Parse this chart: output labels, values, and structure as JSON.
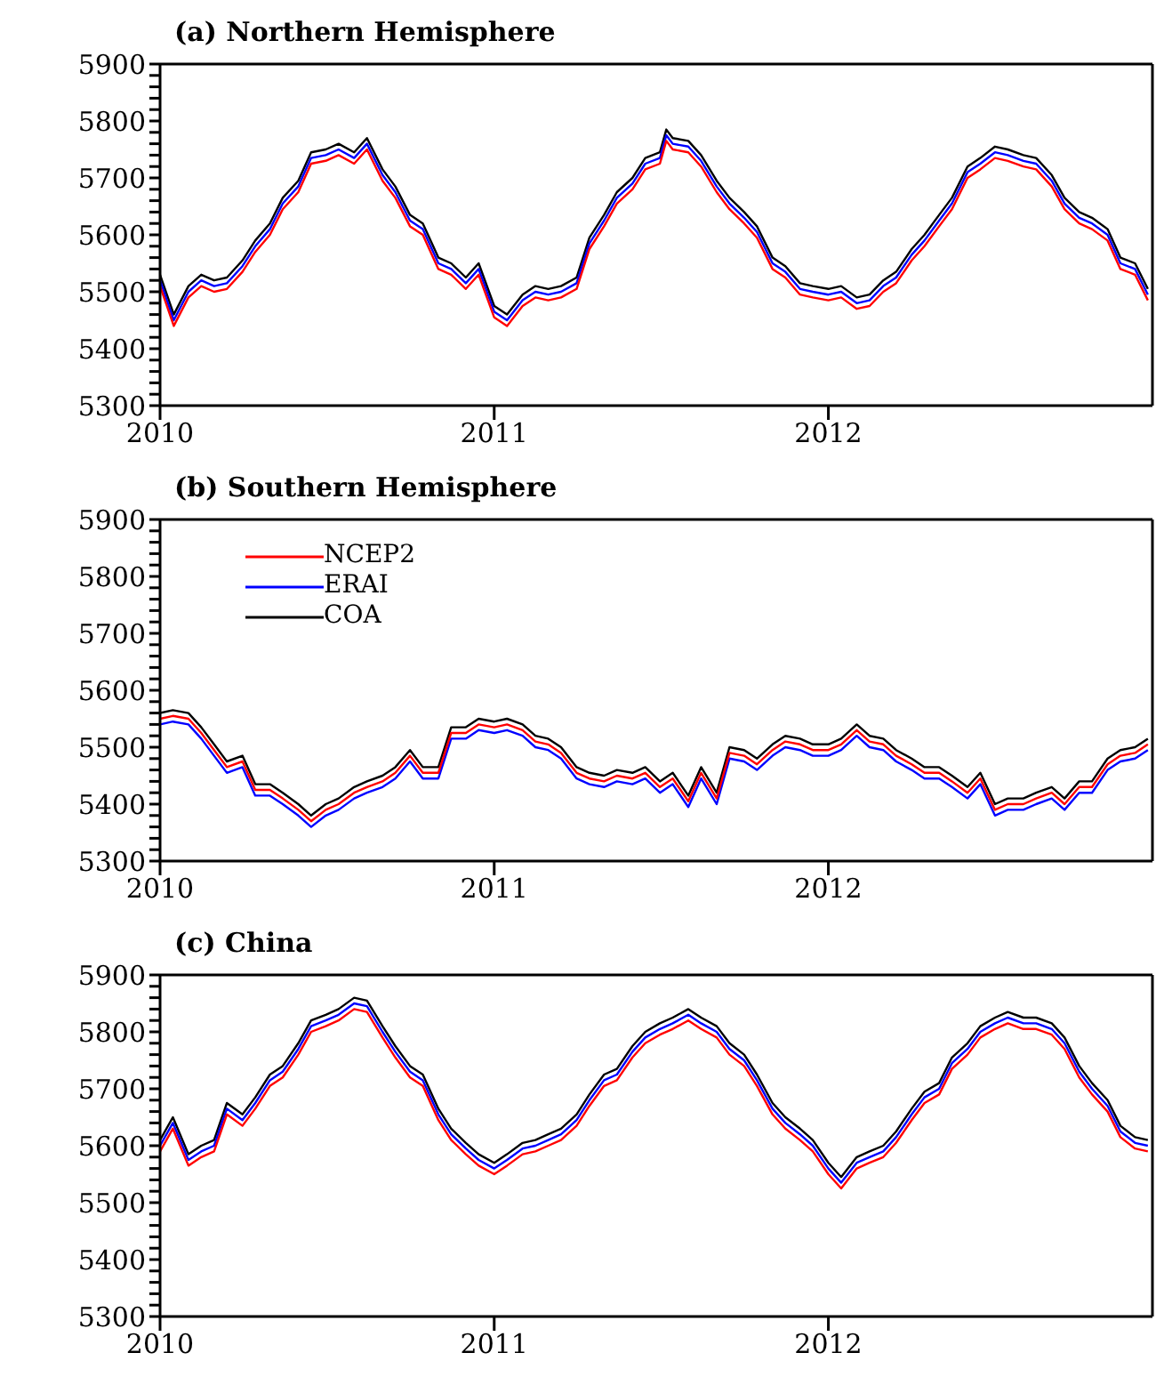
{
  "chart_data": [
    {
      "type": "line",
      "title": "(a) Northern Hemisphere",
      "x": [
        "2010-01-01",
        "2010-01-16",
        "2010-02-01",
        "2010-02-15",
        "2010-03-01",
        "2010-03-15",
        "2010-04-01",
        "2010-04-15",
        "2010-05-01",
        "2010-05-15",
        "2010-06-01",
        "2010-06-15",
        "2010-07-01",
        "2010-07-15",
        "2010-08-01",
        "2010-08-15",
        "2010-09-01",
        "2010-09-15",
        "2010-10-01",
        "2010-10-15",
        "2010-11-01",
        "2010-11-15",
        "2010-12-01",
        "2010-12-15",
        "2011-01-01",
        "2011-01-15",
        "2011-02-01",
        "2011-02-15",
        "2011-03-01",
        "2011-03-15",
        "2011-04-01",
        "2011-04-15",
        "2011-05-01",
        "2011-05-15",
        "2011-06-01",
        "2011-06-15",
        "2011-07-01",
        "2011-07-08",
        "2011-07-15",
        "2011-08-01",
        "2011-08-15",
        "2011-09-01",
        "2011-09-15",
        "2011-10-01",
        "2011-10-15",
        "2011-11-01",
        "2011-11-15",
        "2011-12-01",
        "2011-12-15",
        "2012-01-01",
        "2012-01-15",
        "2012-02-01",
        "2012-02-15",
        "2012-03-01",
        "2012-03-15",
        "2012-04-01",
        "2012-04-15",
        "2012-05-01",
        "2012-05-15",
        "2012-06-01",
        "2012-06-15",
        "2012-07-01",
        "2012-07-15",
        "2012-08-01",
        "2012-08-15",
        "2012-09-01",
        "2012-09-15",
        "2012-10-01",
        "2012-10-15",
        "2012-11-01",
        "2012-11-15",
        "2012-12-01",
        "2012-12-15"
      ],
      "series": [
        {
          "color": "#ff0000",
          "values": [
            5510,
            5440,
            5490,
            5510,
            5500,
            5505,
            5535,
            5570,
            5600,
            5645,
            5675,
            5725,
            5730,
            5740,
            5725,
            5750,
            5695,
            5665,
            5615,
            5600,
            5540,
            5530,
            5505,
            5530,
            5455,
            5440,
            5475,
            5490,
            5485,
            5490,
            5505,
            5575,
            5615,
            5655,
            5680,
            5715,
            5725,
            5765,
            5750,
            5745,
            5720,
            5675,
            5645,
            5620,
            5595,
            5540,
            5525,
            5495,
            5490,
            5485,
            5490,
            5470,
            5475,
            5500,
            5515,
            5555,
            5580,
            5615,
            5645,
            5700,
            5715,
            5735,
            5730,
            5720,
            5715,
            5685,
            5645,
            5620,
            5610,
            5590,
            5540,
            5530,
            5485
          ]
        },
        {
          "color": "#0000ff",
          "values": [
            5520,
            5450,
            5500,
            5520,
            5510,
            5515,
            5545,
            5580,
            5610,
            5655,
            5685,
            5735,
            5740,
            5750,
            5735,
            5760,
            5705,
            5675,
            5625,
            5610,
            5550,
            5540,
            5515,
            5540,
            5465,
            5450,
            5485,
            5500,
            5495,
            5500,
            5515,
            5585,
            5625,
            5665,
            5690,
            5725,
            5735,
            5775,
            5760,
            5755,
            5730,
            5685,
            5655,
            5630,
            5605,
            5550,
            5535,
            5505,
            5500,
            5495,
            5500,
            5480,
            5485,
            5510,
            5525,
            5565,
            5590,
            5625,
            5655,
            5710,
            5725,
            5745,
            5740,
            5730,
            5725,
            5695,
            5655,
            5630,
            5620,
            5600,
            5550,
            5540,
            5495
          ]
        },
        {
          "color": "#000000",
          "values": [
            5530,
            5460,
            5510,
            5530,
            5520,
            5525,
            5555,
            5590,
            5620,
            5665,
            5695,
            5745,
            5750,
            5760,
            5745,
            5770,
            5715,
            5685,
            5635,
            5620,
            5560,
            5550,
            5525,
            5550,
            5475,
            5460,
            5495,
            5510,
            5505,
            5510,
            5525,
            5595,
            5635,
            5675,
            5700,
            5735,
            5745,
            5785,
            5770,
            5765,
            5740,
            5695,
            5665,
            5640,
            5615,
            5560,
            5545,
            5515,
            5510,
            5505,
            5510,
            5490,
            5495,
            5520,
            5535,
            5575,
            5600,
            5635,
            5665,
            5720,
            5735,
            5755,
            5750,
            5740,
            5735,
            5705,
            5665,
            5640,
            5630,
            5610,
            5560,
            5550,
            5505
          ]
        }
      ],
      "xlim": [
        "2010-01-01",
        "2012-12-20"
      ],
      "xticks": [
        "2010",
        "2011",
        "2012"
      ],
      "ylim": [
        5300,
        5900
      ],
      "yticks": [
        5300,
        {
          "value": 5320,
          "label": null
        },
        {
          "value": 5340,
          "label": null
        },
        {
          "value": 5360,
          "label": null
        },
        {
          "value": 5380,
          "label": null
        },
        5400,
        {
          "value": 5420,
          "label": null
        },
        {
          "value": 5440,
          "label": null
        },
        {
          "value": 5460,
          "label": null
        },
        {
          "value": 5480,
          "label": null
        },
        5500,
        {
          "value": 5520,
          "label": null
        },
        {
          "value": 5540,
          "label": null
        },
        {
          "value": 5560,
          "label": null
        },
        {
          "value": 5580,
          "label": null
        },
        5600,
        {
          "value": 5620,
          "label": null
        },
        {
          "value": 5640,
          "label": null
        },
        {
          "value": 5660,
          "label": null
        },
        {
          "value": 5680,
          "label": null
        },
        5700,
        {
          "value": 5720,
          "label": null
        },
        {
          "value": 5740,
          "label": null
        },
        {
          "value": 5760,
          "label": null
        },
        {
          "value": 5780,
          "label": null
        },
        5800,
        {
          "value": 5820,
          "label": null
        },
        {
          "value": 5840,
          "label": null
        },
        {
          "value": 5860,
          "label": null
        },
        {
          "value": 5880,
          "label": null
        },
        5900
      ],
      "grid": false,
      "marker": "none",
      "line_style": "solid"
    },
    {
      "type": "line",
      "title": "(b) Southern Hemisphere",
      "x": [
        "2010-01-01",
        "2010-01-15",
        "2010-02-01",
        "2010-02-15",
        "2010-03-01",
        "2010-03-15",
        "2010-04-01",
        "2010-04-15",
        "2010-05-01",
        "2010-05-15",
        "2010-06-01",
        "2010-06-15",
        "2010-07-01",
        "2010-07-15",
        "2010-08-01",
        "2010-08-15",
        "2010-09-01",
        "2010-09-15",
        "2010-10-01",
        "2010-10-15",
        "2010-11-01",
        "2010-11-15",
        "2010-12-01",
        "2010-12-15",
        "2011-01-01",
        "2011-01-15",
        "2011-02-01",
        "2011-02-15",
        "2011-03-01",
        "2011-03-15",
        "2011-04-01",
        "2011-04-15",
        "2011-05-01",
        "2011-05-15",
        "2011-06-01",
        "2011-06-15",
        "2011-07-01",
        "2011-07-15",
        "2011-08-01",
        "2011-08-15",
        "2011-09-01",
        "2011-09-15",
        "2011-10-01",
        "2011-10-15",
        "2011-11-01",
        "2011-11-15",
        "2011-12-01",
        "2011-12-15",
        "2012-01-01",
        "2012-01-15",
        "2012-02-01",
        "2012-02-15",
        "2012-03-01",
        "2012-03-15",
        "2012-04-01",
        "2012-04-15",
        "2012-05-01",
        "2012-05-15",
        "2012-06-01",
        "2012-06-15",
        "2012-07-01",
        "2012-07-15",
        "2012-08-01",
        "2012-08-15",
        "2012-09-01",
        "2012-09-15",
        "2012-10-01",
        "2012-10-15",
        "2012-11-01",
        "2012-11-15",
        "2012-12-01",
        "2012-12-15"
      ],
      "series": [
        {
          "name": "NCEP2",
          "color": "#ff0000",
          "values": [
            5550,
            5555,
            5550,
            5525,
            5495,
            5465,
            5475,
            5425,
            5425,
            5410,
            5390,
            5370,
            5390,
            5400,
            5420,
            5430,
            5440,
            5455,
            5485,
            5455,
            5455,
            5525,
            5525,
            5540,
            5535,
            5540,
            5530,
            5510,
            5505,
            5490,
            5455,
            5445,
            5440,
            5450,
            5445,
            5455,
            5430,
            5445,
            5405,
            5455,
            5410,
            5490,
            5485,
            5470,
            5495,
            5510,
            5505,
            5495,
            5495,
            5505,
            5530,
            5510,
            5505,
            5485,
            5470,
            5455,
            5455,
            5440,
            5420,
            5445,
            5390,
            5400,
            5400,
            5410,
            5420,
            5400,
            5430,
            5430,
            5470,
            5485,
            5490,
            5505
          ]
        },
        {
          "name": "ERAI",
          "color": "#0000ff",
          "values": [
            5540,
            5545,
            5540,
            5515,
            5485,
            5455,
            5465,
            5415,
            5415,
            5400,
            5380,
            5360,
            5380,
            5390,
            5410,
            5420,
            5430,
            5445,
            5475,
            5445,
            5445,
            5515,
            5515,
            5530,
            5525,
            5530,
            5520,
            5500,
            5495,
            5480,
            5445,
            5435,
            5430,
            5440,
            5435,
            5445,
            5420,
            5435,
            5395,
            5445,
            5400,
            5480,
            5475,
            5460,
            5485,
            5500,
            5495,
            5485,
            5485,
            5495,
            5520,
            5500,
            5495,
            5475,
            5460,
            5445,
            5445,
            5430,
            5410,
            5435,
            5380,
            5390,
            5390,
            5400,
            5410,
            5390,
            5420,
            5420,
            5460,
            5475,
            5480,
            5495
          ]
        },
        {
          "name": "COA",
          "color": "#000000",
          "values": [
            5560,
            5565,
            5560,
            5535,
            5505,
            5475,
            5485,
            5435,
            5435,
            5420,
            5400,
            5380,
            5400,
            5410,
            5430,
            5440,
            5450,
            5465,
            5495,
            5465,
            5465,
            5535,
            5535,
            5550,
            5545,
            5550,
            5540,
            5520,
            5515,
            5500,
            5465,
            5455,
            5450,
            5460,
            5455,
            5465,
            5440,
            5455,
            5415,
            5465,
            5420,
            5500,
            5495,
            5480,
            5505,
            5520,
            5515,
            5505,
            5505,
            5515,
            5540,
            5520,
            5515,
            5495,
            5480,
            5465,
            5465,
            5450,
            5430,
            5455,
            5400,
            5410,
            5410,
            5420,
            5430,
            5410,
            5440,
            5440,
            5480,
            5495,
            5500,
            5515
          ]
        }
      ],
      "xlim": [
        "2010-01-01",
        "2012-12-20"
      ],
      "xticks": [
        "2010",
        "2011",
        "2012"
      ],
      "ylim": [
        5300,
        5900
      ],
      "yticks": [
        5300,
        {
          "value": 5320,
          "label": null
        },
        {
          "value": 5340,
          "label": null
        },
        {
          "value": 5360,
          "label": null
        },
        {
          "value": 5380,
          "label": null
        },
        5400,
        {
          "value": 5420,
          "label": null
        },
        {
          "value": 5440,
          "label": null
        },
        {
          "value": 5460,
          "label": null
        },
        {
          "value": 5480,
          "label": null
        },
        5500,
        {
          "value": 5520,
          "label": null
        },
        {
          "value": 5540,
          "label": null
        },
        {
          "value": 5560,
          "label": null
        },
        {
          "value": 5580,
          "label": null
        },
        5600,
        {
          "value": 5620,
          "label": null
        },
        {
          "value": 5640,
          "label": null
        },
        {
          "value": 5660,
          "label": null
        },
        {
          "value": 5680,
          "label": null
        },
        5700,
        {
          "value": 5720,
          "label": null
        },
        {
          "value": 5740,
          "label": null
        },
        {
          "value": 5760,
          "label": null
        },
        {
          "value": 5780,
          "label": null
        },
        5800,
        {
          "value": 5820,
          "label": null
        },
        {
          "value": 5840,
          "label": null
        },
        {
          "value": 5860,
          "label": null
        },
        {
          "value": 5880,
          "label": null
        },
        5900
      ],
      "grid": false,
      "legend": "top left",
      "marker": "none",
      "line_style": "solid"
    },
    {
      "type": "line",
      "title": "(c) China",
      "x": [
        "2010-01-01",
        "2010-01-15",
        "2010-02-01",
        "2010-02-15",
        "2010-03-01",
        "2010-03-15",
        "2010-04-01",
        "2010-04-15",
        "2010-05-01",
        "2010-05-15",
        "2010-06-01",
        "2010-06-15",
        "2010-07-01",
        "2010-07-15",
        "2010-08-01",
        "2010-08-15",
        "2010-09-01",
        "2010-09-15",
        "2010-10-01",
        "2010-10-15",
        "2010-11-01",
        "2010-11-15",
        "2010-12-01",
        "2010-12-15",
        "2011-01-01",
        "2011-01-15",
        "2011-02-01",
        "2011-02-15",
        "2011-03-01",
        "2011-03-15",
        "2011-04-01",
        "2011-04-15",
        "2011-05-01",
        "2011-05-15",
        "2011-06-01",
        "2011-06-15",
        "2011-07-01",
        "2011-07-15",
        "2011-08-01",
        "2011-08-15",
        "2011-09-01",
        "2011-09-15",
        "2011-10-01",
        "2011-10-15",
        "2011-11-01",
        "2011-11-15",
        "2011-12-01",
        "2011-12-15",
        "2012-01-01",
        "2012-01-15",
        "2012-02-01",
        "2012-02-15",
        "2012-03-01",
        "2012-03-15",
        "2012-04-01",
        "2012-04-15",
        "2012-05-01",
        "2012-05-15",
        "2012-06-01",
        "2012-06-15",
        "2012-07-01",
        "2012-07-15",
        "2012-08-01",
        "2012-08-15",
        "2012-09-01",
        "2012-09-15",
        "2012-10-01",
        "2012-10-15",
        "2012-11-01",
        "2012-11-15",
        "2012-12-01",
        "2012-12-15"
      ],
      "series": [
        {
          "color": "#ff0000",
          "values": [
            5590,
            5630,
            5565,
            5580,
            5590,
            5655,
            5635,
            5665,
            5705,
            5720,
            5760,
            5800,
            5810,
            5820,
            5840,
            5835,
            5790,
            5755,
            5720,
            5705,
            5645,
            5610,
            5585,
            5565,
            5550,
            5565,
            5585,
            5590,
            5600,
            5610,
            5635,
            5670,
            5705,
            5715,
            5755,
            5780,
            5795,
            5805,
            5820,
            5805,
            5790,
            5760,
            5740,
            5705,
            5655,
            5630,
            5610,
            5590,
            5550,
            5525,
            5560,
            5570,
            5580,
            5605,
            5645,
            5675,
            5690,
            5735,
            5760,
            5790,
            5805,
            5815,
            5805,
            5805,
            5795,
            5770,
            5720,
            5690,
            5660,
            5615,
            5595,
            5590
          ]
        },
        {
          "color": "#0000ff",
          "values": [
            5600,
            5640,
            5575,
            5590,
            5600,
            5665,
            5645,
            5675,
            5715,
            5730,
            5770,
            5810,
            5820,
            5830,
            5850,
            5845,
            5800,
            5765,
            5730,
            5715,
            5655,
            5620,
            5595,
            5575,
            5560,
            5575,
            5595,
            5600,
            5610,
            5620,
            5645,
            5680,
            5715,
            5725,
            5765,
            5790,
            5805,
            5815,
            5830,
            5815,
            5800,
            5770,
            5750,
            5715,
            5665,
            5640,
            5620,
            5600,
            5560,
            5535,
            5570,
            5580,
            5590,
            5615,
            5655,
            5685,
            5700,
            5745,
            5770,
            5800,
            5815,
            5825,
            5815,
            5815,
            5805,
            5780,
            5730,
            5700,
            5670,
            5625,
            5605,
            5600
          ]
        },
        {
          "color": "#000000",
          "values": [
            5610,
            5650,
            5585,
            5600,
            5610,
            5675,
            5655,
            5685,
            5725,
            5740,
            5780,
            5820,
            5830,
            5840,
            5860,
            5855,
            5810,
            5775,
            5740,
            5725,
            5665,
            5630,
            5605,
            5585,
            5570,
            5585,
            5605,
            5610,
            5620,
            5630,
            5655,
            5690,
            5725,
            5735,
            5775,
            5800,
            5815,
            5825,
            5840,
            5825,
            5810,
            5780,
            5760,
            5725,
            5675,
            5650,
            5630,
            5610,
            5570,
            5545,
            5580,
            5590,
            5600,
            5625,
            5665,
            5695,
            5710,
            5755,
            5780,
            5810,
            5825,
            5835,
            5825,
            5825,
            5815,
            5790,
            5740,
            5710,
            5680,
            5635,
            5615,
            5610
          ]
        }
      ],
      "xlim": [
        "2010-01-01",
        "2012-12-20"
      ],
      "xticks": [
        "2010",
        "2011",
        "2012"
      ],
      "ylim": [
        5300,
        5900
      ],
      "yticks": [
        5300,
        {
          "value": 5320,
          "label": null
        },
        {
          "value": 5340,
          "label": null
        },
        {
          "value": 5360,
          "label": null
        },
        {
          "value": 5380,
          "label": null
        },
        5400,
        {
          "value": 5420,
          "label": null
        },
        {
          "value": 5440,
          "label": null
        },
        {
          "value": 5460,
          "label": null
        },
        {
          "value": 5480,
          "label": null
        },
        5500,
        {
          "value": 5520,
          "label": null
        },
        {
          "value": 5540,
          "label": null
        },
        {
          "value": 5560,
          "label": null
        },
        {
          "value": 5580,
          "label": null
        },
        5600,
        {
          "value": 5620,
          "label": null
        },
        {
          "value": 5640,
          "label": null
        },
        {
          "value": 5660,
          "label": null
        },
        {
          "value": 5680,
          "label": null
        },
        5700,
        {
          "value": 5720,
          "label": null
        },
        {
          "value": 5740,
          "label": null
        },
        {
          "value": 5760,
          "label": null
        },
        {
          "value": 5780,
          "label": null
        },
        5800,
        {
          "value": 5820,
          "label": null
        },
        {
          "value": 5840,
          "label": null
        },
        {
          "value": 5860,
          "label": null
        },
        {
          "value": 5880,
          "label": null
        },
        5900
      ],
      "grid": false,
      "marker": "none",
      "line_style": "solid"
    }
  ]
}
